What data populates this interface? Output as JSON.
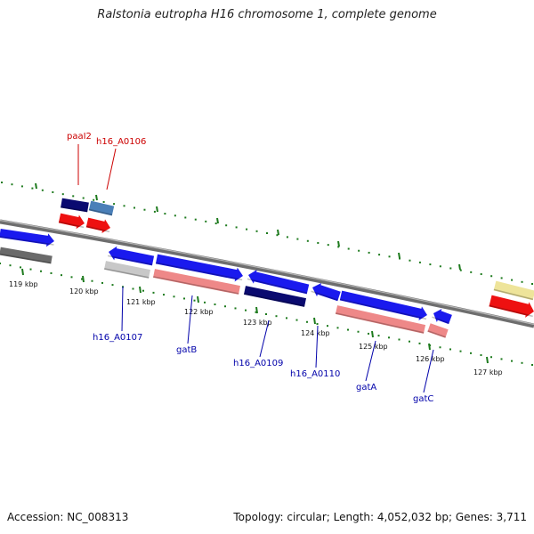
{
  "title": "Ralstonia eutropha H16 chromosome 1, complete genome",
  "footer": {
    "accession": "Accession: NC_008313",
    "summary": "Topology: circular; Length: 4,052,032 bp; Genes: 3,711"
  },
  "colors": {
    "ruler": "#777777",
    "tick": "#1d7a1d",
    "cds_forward": "#1a1aee",
    "cds_dark": "#0a0a70",
    "cds_steel": "#4a7fb8",
    "cds_reverse_red": "#ee1111",
    "pink": "#ee8888",
    "gray": "#c8c8c8",
    "dark_gray": "#6a6a6a",
    "yellow": "#eee49a",
    "label_red": "#cc0000",
    "label_blue": "#0000aa"
  },
  "kbp_ticks": [
    "119 kbp",
    "120 kbp",
    "121 kbp",
    "122 kbp",
    "123 kbp",
    "124 kbp",
    "125 kbp",
    "126 kbp",
    "127 kbp"
  ],
  "gene_labels": [
    {
      "text": "paaI2",
      "color": "label_red",
      "side": "top"
    },
    {
      "text": "h16_A0106",
      "color": "label_red",
      "side": "top"
    },
    {
      "text": "h16_A0107",
      "color": "label_blue",
      "side": "bottom"
    },
    {
      "text": "gatB",
      "color": "label_blue",
      "side": "bottom"
    },
    {
      "text": "h16_A0109",
      "color": "label_blue",
      "side": "bottom"
    },
    {
      "text": "h16_A0110",
      "color": "label_blue",
      "side": "bottom"
    },
    {
      "text": "gatA",
      "color": "label_blue",
      "side": "bottom"
    },
    {
      "text": "gatC",
      "color": "label_blue",
      "side": "bottom"
    }
  ],
  "features": [
    {
      "name": "cds-upper-far-left",
      "color": "cds_forward",
      "arrow": "right"
    },
    {
      "name": "cds-gray-far-left",
      "color": "dark_gray",
      "arrow": "none"
    },
    {
      "name": "cds-paaI2",
      "color": "cds_dark",
      "arrow": "none"
    },
    {
      "name": "cds-h16-A0106",
      "color": "cds_steel",
      "arrow": "none"
    },
    {
      "name": "cds-red-1",
      "color": "cds_reverse_red",
      "arrow": "right"
    },
    {
      "name": "cds-red-2",
      "color": "cds_reverse_red",
      "arrow": "right"
    },
    {
      "name": "cds-blue-121",
      "color": "cds_forward",
      "arrow": "left"
    },
    {
      "name": "cds-h16-A0107",
      "color": "gray",
      "arrow": "none"
    },
    {
      "name": "cds-blue-122",
      "color": "cds_forward",
      "arrow": "right"
    },
    {
      "name": "cds-gatB",
      "color": "pink",
      "arrow": "none"
    },
    {
      "name": "cds-blue-123",
      "color": "cds_forward",
      "arrow": "left"
    },
    {
      "name": "cds-h16-A0109",
      "color": "cds_dark",
      "arrow": "none"
    },
    {
      "name": "cds-blue-124",
      "color": "cds_forward",
      "arrow": "left"
    },
    {
      "name": "cds-blue-125",
      "color": "cds_forward",
      "arrow": "right"
    },
    {
      "name": "cds-gatA",
      "color": "pink",
      "arrow": "none"
    },
    {
      "name": "cds-blue-126",
      "color": "cds_forward",
      "arrow": "left"
    },
    {
      "name": "cds-gatC",
      "color": "pink",
      "arrow": "none"
    },
    {
      "name": "cds-yellow-right",
      "color": "yellow",
      "arrow": "none"
    },
    {
      "name": "cds-red-right",
      "color": "cds_reverse_red",
      "arrow": "right"
    }
  ]
}
